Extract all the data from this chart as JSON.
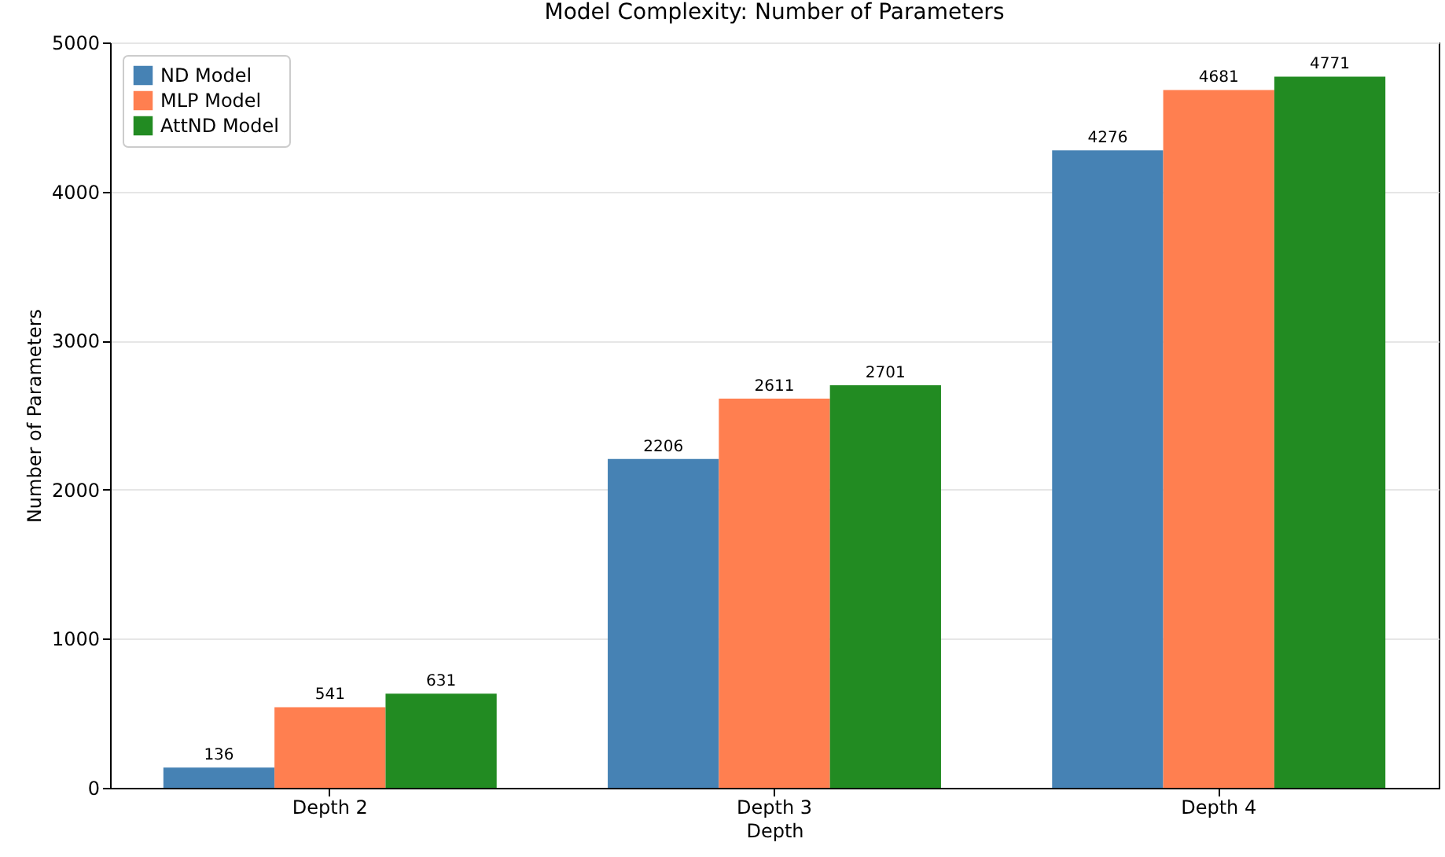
{
  "chart_data": {
    "type": "bar",
    "title": "Model Complexity: Number of Parameters",
    "xlabel": "Depth",
    "ylabel": "Number of Parameters",
    "categories": [
      "Depth 2",
      "Depth 3",
      "Depth 4"
    ],
    "series": [
      {
        "name": "ND Model",
        "color": "#4682b4",
        "values": [
          136,
          2206,
          4276
        ]
      },
      {
        "name": "MLP Model",
        "color": "#ff7f50",
        "values": [
          541,
          2611,
          4681
        ]
      },
      {
        "name": "AttND Model",
        "color": "#228b22",
        "values": [
          631,
          2701,
          4771
        ]
      }
    ],
    "ylim": [
      0,
      5000
    ],
    "yticks": [
      0,
      1000,
      2000,
      3000,
      4000,
      5000
    ],
    "grid": "y",
    "legend": "top left",
    "data_labels": true
  }
}
